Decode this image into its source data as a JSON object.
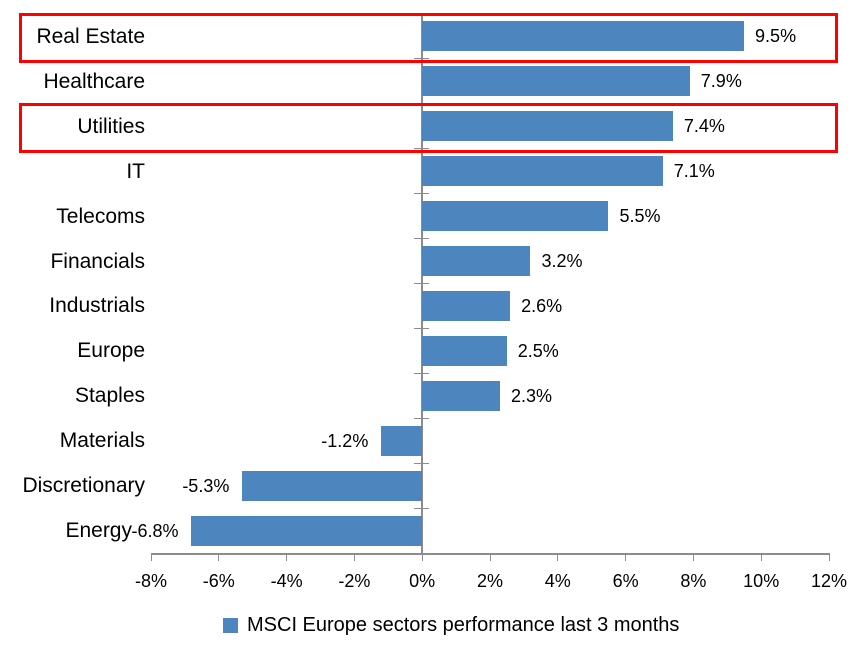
{
  "chart_data": {
    "type": "bar",
    "orientation": "horizontal",
    "categories": [
      "Real Estate",
      "Healthcare",
      "Utilities",
      "IT",
      "Telecoms",
      "Financials",
      "Industrials",
      "Europe",
      "Staples",
      "Materials",
      "Discretionary",
      "Energy"
    ],
    "series": [
      {
        "name": "MSCI Europe sectors performance last 3 months",
        "values": [
          9.5,
          7.9,
          7.4,
          7.1,
          5.5,
          3.2,
          2.6,
          2.5,
          2.3,
          -1.2,
          -5.3,
          -6.8
        ],
        "labels": [
          "9.5%",
          "7.9%",
          "7.4%",
          "7.1%",
          "5.5%",
          "3.2%",
          "2.6%",
          "2.5%",
          "2.3%",
          "-1.2%",
          "-5.3%",
          "-6.8%"
        ],
        "color": "#4D86BE"
      }
    ],
    "x_axis": {
      "min": -8,
      "max": 12,
      "step": 2,
      "tick_labels": [
        "-8%",
        "-6%",
        "-4%",
        "-2%",
        "0%",
        "2%",
        "4%",
        "6%",
        "8%",
        "10%",
        "12%"
      ]
    },
    "grid": false,
    "bar_label_position": "outside-end",
    "legend_position": "bottom",
    "highlighted_categories": [
      "Real Estate",
      "Utilities"
    ],
    "colors": {
      "bar": "#4D86BE",
      "highlight": "#FF0000",
      "axis": "#8C8C8C",
      "text": "#000000",
      "background": "#FFFFFF"
    }
  }
}
